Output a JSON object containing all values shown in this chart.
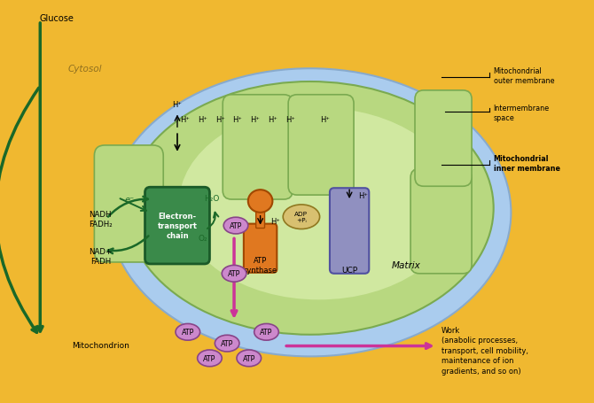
{
  "bg_color": "#F0B830",
  "outer_ellipse_color": "#AACCEE",
  "outer_ellipse_edge": "#88AACC",
  "inner_membrane_color": "#B8D880",
  "inner_membrane_edge": "#7AAA50",
  "matrix_color": "#D0E8A0",
  "intermembrane_color": "#C0DCF0",
  "cytosol_color": "#F0B830",
  "etc_fill": "#3A8A4A",
  "etc_edge": "#1A5A28",
  "atp_synth_orange": "#E07820",
  "atp_synth_edge": "#A04800",
  "ucp_fill": "#9090C0",
  "ucp_edge": "#5050A0",
  "adp_fill": "#D8C070",
  "adp_edge": "#907820",
  "atp_fill": "#CC88CC",
  "atp_edge": "#884488",
  "green_arrow": "#1A6828",
  "pink_arrow": "#CC3399",
  "black": "#000000",
  "glucose_label": "Glucose",
  "cytosol_label": "Cytosol",
  "mitochondrion_label": "Mitochondrion",
  "matrix_label": "Matrix",
  "etc_label": "Electron-\ntransport\nchain",
  "atp_synthase_label": "ATP\nsynthase",
  "ucp_label": "UCP",
  "nadh_label": "NADH\nFADH₂",
  "nad_label": "NAD+\nFADH",
  "o2_label": "O₂",
  "h2o_label": "H₂O",
  "adp_label": "ADP\n+Pᵢ",
  "work_label": "Work\n(anabolic processes,\ntransport, cell mobility,\nmaintenance of ion\ngradients, and so on)",
  "outer_mem_label": "Mitochondrial\nouter membrane",
  "inter_space_label": "Intermembrane\nspace",
  "inner_mem_label": "Mitochondrial\ninner membrane"
}
